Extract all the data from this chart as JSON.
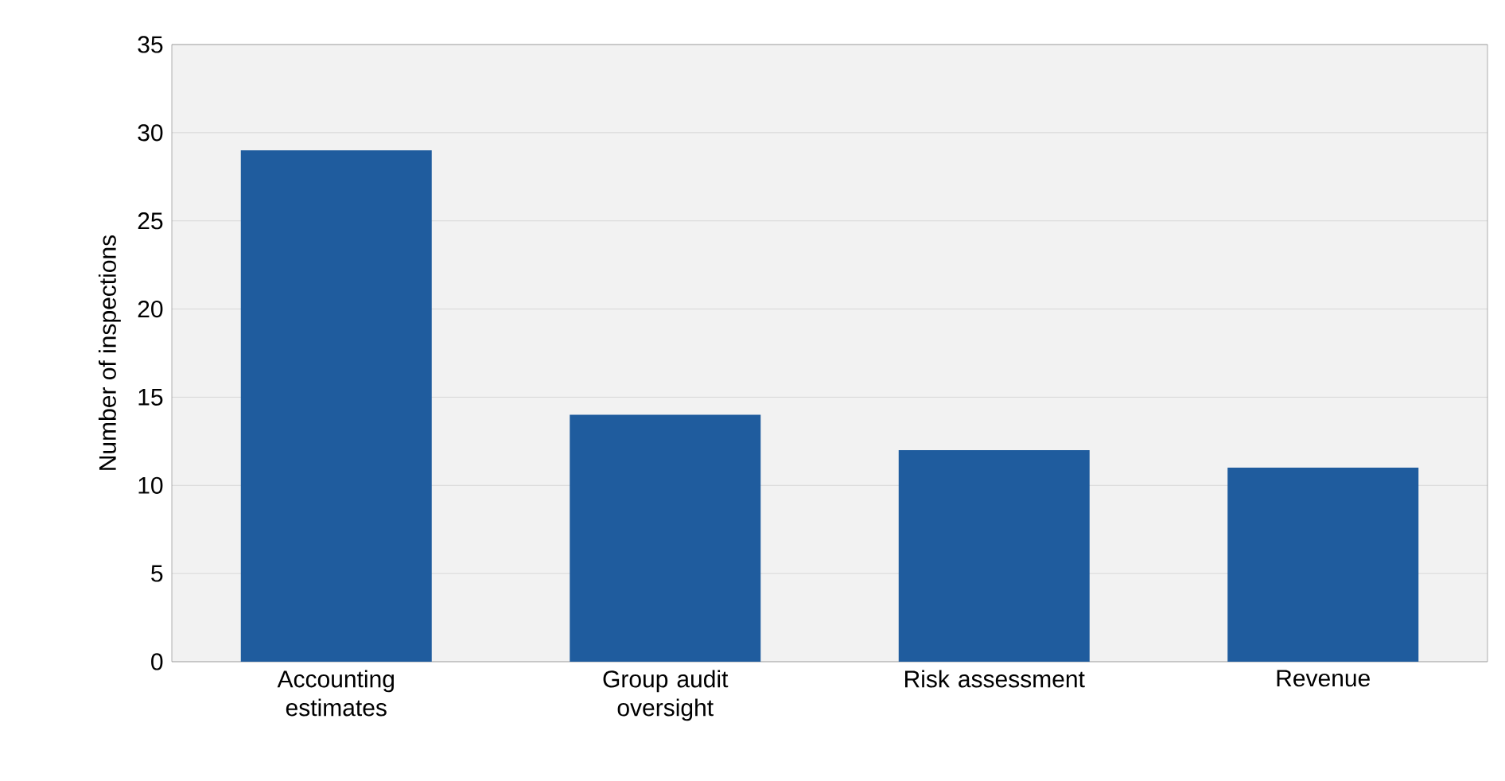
{
  "chart_data": {
    "type": "bar",
    "ylabel": "Number of inspections",
    "categories": [
      "Accounting estimates",
      "Group audit oversight",
      "Risk assessment",
      "Revenue"
    ],
    "values": [
      29,
      14,
      12,
      11
    ],
    "color": "#1f5c9e",
    "ylim": [
      0,
      35
    ],
    "yticks": [
      0,
      5,
      10,
      15,
      20,
      25,
      30,
      35
    ],
    "grid": "y"
  }
}
